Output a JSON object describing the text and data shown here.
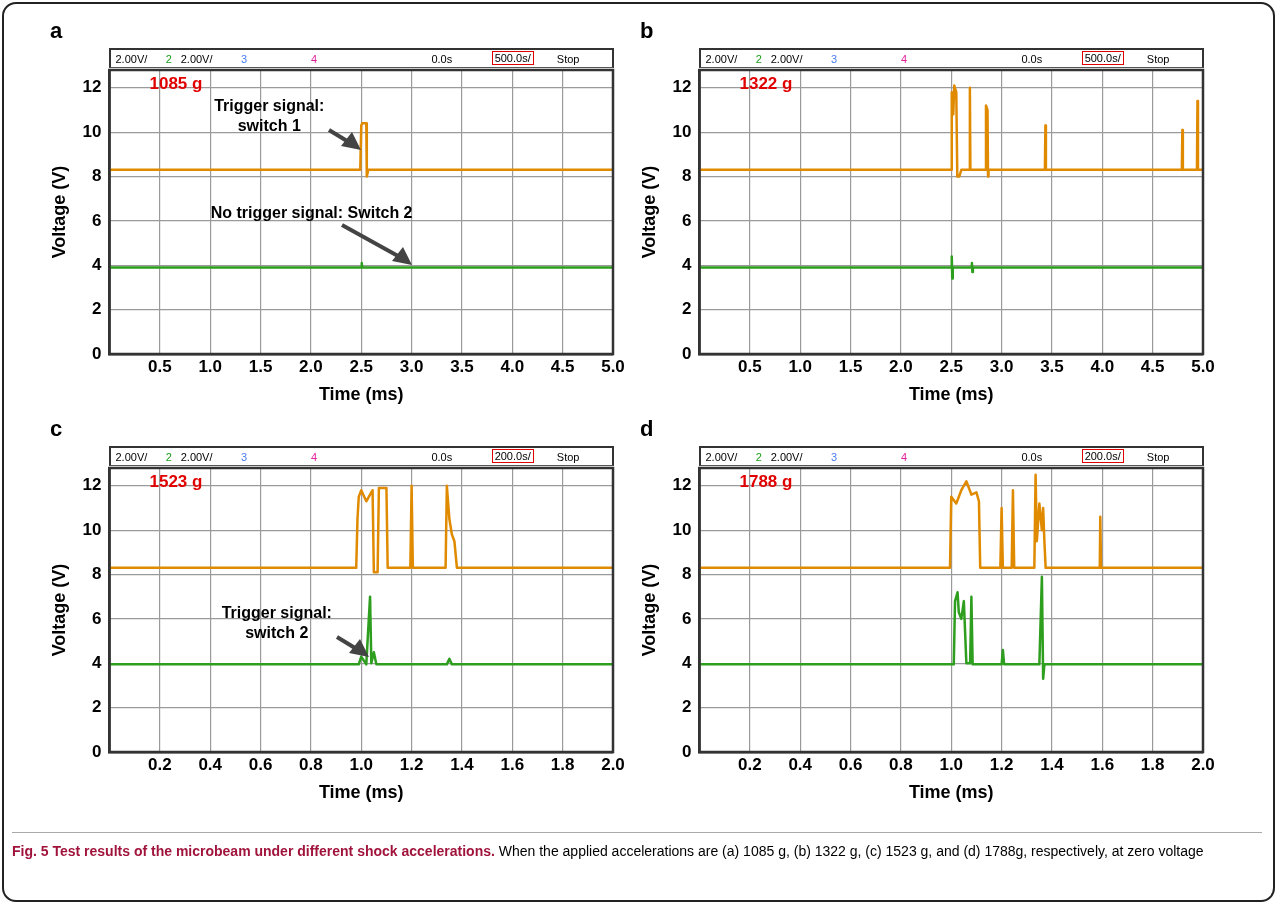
{
  "chart_data": [
    {
      "type": "line",
      "xlabel": "Time (ms)",
      "ylabel": "Voltage (V)",
      "xlim": [
        0,
        5
      ],
      "ylim": [
        0,
        12.8
      ],
      "grid": true,
      "legend": false,
      "marker": "none",
      "line_style": "solid",
      "xticks": [
        {
          "value": 0,
          "label": null
        },
        0.5,
        {
          "value": 1,
          "label": "1.0"
        },
        1.5,
        {
          "value": 2,
          "label": "2.0"
        },
        2.5,
        {
          "value": 3,
          "label": "3.0"
        },
        3.5,
        {
          "value": 4,
          "label": "4.0"
        },
        4.5,
        {
          "value": 5,
          "label": "5.0"
        }
      ],
      "yticks": [
        0,
        2,
        4,
        6,
        8,
        10,
        12
      ],
      "annotations": [
        "a",
        "2.00V/",
        "2",
        "2.00V/",
        "3",
        "4",
        "0.0s",
        "500.0s/",
        "Stop",
        "1085 g",
        {
          "text": "Trigger signal: switch 1",
          "x": 2.5,
          "y": 9.2
        },
        {
          "text": "No trigger signal: Switch 2",
          "x": 3.0,
          "y": 4.0
        }
      ],
      "series": [
        {
          "color": "#e08a00",
          "x": [
            0,
            2.49,
            2.5,
            2.51,
            2.55,
            2.555,
            2.57,
            5
          ],
          "values": [
            8.3,
            8.3,
            10.3,
            10.4,
            10.4,
            8.0,
            8.3,
            8.3
          ]
        },
        {
          "color": "#2e9e1e",
          "x": [
            0,
            2.5,
            2.505,
            2.51,
            5
          ],
          "values": [
            3.9,
            3.9,
            4.1,
            3.9,
            3.9
          ]
        }
      ]
    },
    {
      "type": "line",
      "xlabel": "Time (ms)",
      "ylabel": "Voltage (V)",
      "xlim": [
        0,
        5
      ],
      "ylim": [
        0,
        12.8
      ],
      "grid": true,
      "legend": false,
      "marker": "none",
      "line_style": "solid",
      "xticks": [
        {
          "value": 0,
          "label": null
        },
        0.5,
        {
          "value": 1,
          "label": "1.0"
        },
        1.5,
        {
          "value": 2,
          "label": "2.0"
        },
        2.5,
        {
          "value": 3,
          "label": "3.0"
        },
        3.5,
        {
          "value": 4,
          "label": "4.0"
        },
        4.5,
        {
          "value": 5,
          "label": "5.0"
        }
      ],
      "yticks": [
        0,
        2,
        4,
        6,
        8,
        10,
        12
      ],
      "annotations": [
        "b",
        "2.00V/",
        "2",
        "2.00V/",
        "3",
        "4",
        "0.0s",
        "500.0s/",
        "Stop",
        "1322 g"
      ],
      "series": [
        {
          "color": "#e08a00",
          "x": [
            0,
            2.5,
            2.505,
            2.52,
            2.53,
            2.55,
            2.56,
            2.58,
            2.6,
            2.68,
            2.685,
            2.69,
            2.84,
            2.845,
            2.86,
            2.865,
            2.87,
            3.43,
            3.435,
            3.44,
            4.79,
            4.795,
            4.8,
            4.94,
            4.945,
            4.95,
            5
          ],
          "values": [
            8.3,
            8.3,
            11.8,
            10.8,
            12.1,
            11.8,
            8.0,
            8.0,
            8.3,
            8.3,
            12.0,
            8.3,
            8.3,
            11.2,
            11.0,
            8.0,
            8.3,
            8.3,
            10.3,
            8.3,
            8.3,
            10.1,
            8.3,
            8.3,
            11.4,
            8.3,
            8.3
          ]
        },
        {
          "color": "#2e9e1e",
          "x": [
            0,
            2.5,
            2.505,
            2.51,
            2.515,
            2.7,
            2.705,
            2.71,
            2.715,
            5
          ],
          "values": [
            3.9,
            3.9,
            4.4,
            3.4,
            3.9,
            3.9,
            4.1,
            3.7,
            3.9,
            3.9
          ]
        }
      ]
    },
    {
      "type": "line",
      "xlabel": "Time (ms)",
      "ylabel": "Voltage (V)",
      "xlim": [
        0,
        2
      ],
      "ylim": [
        0,
        12.8
      ],
      "grid": true,
      "legend": false,
      "marker": "none",
      "line_style": "solid",
      "xticks": [
        {
          "value": 0,
          "label": null
        },
        0.2,
        0.4,
        0.6,
        0.8,
        {
          "value": 1,
          "label": "1.0"
        },
        1.2,
        1.4,
        1.6,
        1.8,
        {
          "value": 2,
          "label": "2.0"
        }
      ],
      "yticks": [
        0,
        2,
        4,
        6,
        8,
        10,
        12
      ],
      "annotations": [
        "c",
        "2.00V/",
        "2",
        "2.00V/",
        "3",
        "4",
        "0.0s",
        "200.0s/",
        "Stop",
        "1523 g",
        {
          "text": "Trigger signal: switch 2",
          "x": 1.03,
          "y": 4.3
        }
      ],
      "series": [
        {
          "color": "#e08a00",
          "x": [
            0,
            0.98,
            0.985,
            0.99,
            1.0,
            1.02,
            1.045,
            1.05,
            1.065,
            1.07,
            1.1,
            1.105,
            1.195,
            1.2,
            1.205,
            1.335,
            1.34,
            1.35,
            1.36,
            1.37,
            1.38,
            2
          ],
          "values": [
            8.3,
            8.3,
            10.5,
            11.5,
            11.8,
            11.3,
            11.8,
            8.1,
            8.1,
            11.9,
            11.9,
            8.3,
            8.3,
            12.0,
            8.3,
            8.3,
            12.0,
            10.5,
            9.8,
            9.5,
            8.3,
            8.3
          ]
        },
        {
          "color": "#2e9e1e",
          "x": [
            0,
            0.99,
            1.0,
            1.02,
            1.03,
            1.035,
            1.04,
            1.05,
            1.06,
            1.34,
            1.35,
            1.36,
            2
          ],
          "values": [
            3.95,
            3.95,
            4.3,
            3.95,
            6.0,
            7.0,
            4.0,
            4.5,
            3.95,
            3.95,
            4.2,
            3.95,
            3.95
          ]
        }
      ]
    },
    {
      "type": "line",
      "xlabel": "Time (ms)",
      "ylabel": "Voltage (V)",
      "xlim": [
        0,
        2
      ],
      "ylim": [
        0,
        12.8
      ],
      "grid": true,
      "legend": false,
      "marker": "none",
      "line_style": "solid",
      "xticks": [
        {
          "value": 0,
          "label": null
        },
        0.2,
        0.4,
        0.6,
        0.8,
        {
          "value": 1,
          "label": "1.0"
        },
        1.2,
        1.4,
        1.6,
        1.8,
        {
          "value": 2,
          "label": "2.0"
        }
      ],
      "yticks": [
        0,
        2,
        4,
        6,
        8,
        10,
        12
      ],
      "annotations": [
        "d",
        "2.00V/",
        "2",
        "2.00V/",
        "3",
        "4",
        "0.0s",
        "200.0s/",
        "Stop",
        "1788 g",
        "Fig. 5 Test results of the microbeam under different shock accelerations.",
        "When the applied accelerations are (a) 1085 g, (b) 1322 g, (c) 1523 g, and (d) 1788g, respectively, at zero voltage"
      ],
      "series": [
        {
          "color": "#e08a00",
          "x": [
            0,
            0.995,
            1.0,
            1.02,
            1.04,
            1.06,
            1.08,
            1.1,
            1.11,
            1.115,
            1.195,
            1.2,
            1.205,
            1.24,
            1.245,
            1.25,
            1.33,
            1.335,
            1.34,
            1.35,
            1.36,
            1.365,
            1.37,
            1.375,
            1.59,
            1.592,
            1.595,
            2
          ],
          "values": [
            8.3,
            8.3,
            11.5,
            11.2,
            11.8,
            12.2,
            11.6,
            11.7,
            11.3,
            8.3,
            8.3,
            11.0,
            8.3,
            8.3,
            11.8,
            8.3,
            8.3,
            12.5,
            9.5,
            11.2,
            10.0,
            11.0,
            9.5,
            8.3,
            8.3,
            10.6,
            8.3,
            8.3
          ]
        },
        {
          "color": "#2e9e1e",
          "x": [
            0,
            1.01,
            1.015,
            1.025,
            1.03,
            1.04,
            1.05,
            1.06,
            1.065,
            1.075,
            1.08,
            1.085,
            1.2,
            1.205,
            1.21,
            1.35,
            1.36,
            1.365,
            1.37,
            2
          ],
          "values": [
            3.95,
            3.95,
            6.8,
            7.2,
            6.3,
            6.0,
            6.8,
            4.0,
            4.0,
            4.0,
            7.0,
            3.95,
            3.95,
            4.6,
            3.95,
            3.95,
            7.9,
            3.3,
            3.95,
            3.95
          ]
        }
      ]
    }
  ]
}
